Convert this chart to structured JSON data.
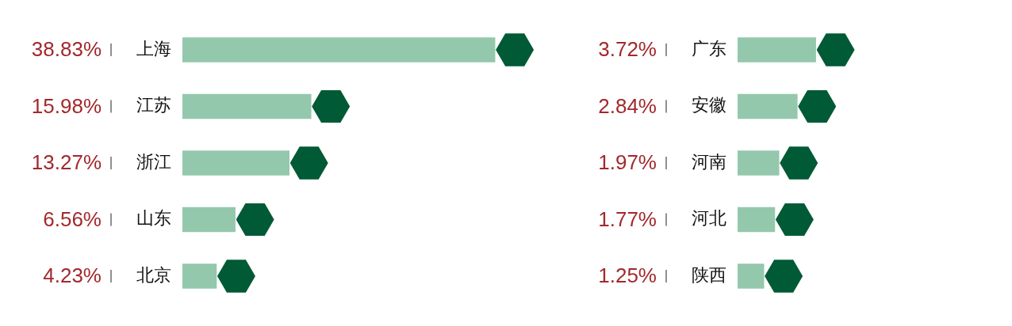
{
  "chart_data": [
    {
      "type": "bar",
      "orientation": "horizontal",
      "categories": [
        "上海",
        "江苏",
        "浙江",
        "山东",
        "北京"
      ],
      "values": [
        38.83,
        15.98,
        13.27,
        6.56,
        4.23
      ],
      "value_labels": [
        "38.83%",
        "15.98%",
        "13.27%",
        "6.56%",
        "4.23%"
      ],
      "color": "#93c8ac",
      "tick_labels": "y",
      "grid": false,
      "legend": false
    },
    {
      "type": "bar",
      "orientation": "horizontal",
      "categories": [
        "广东",
        "安徽",
        "河南",
        "河北",
        "陕西"
      ],
      "values": [
        3.72,
        2.84,
        1.97,
        1.77,
        1.25
      ],
      "value_labels": [
        "3.72%",
        "2.84%",
        "1.97%",
        "1.77%",
        "1.25%"
      ],
      "color": "#93c8ac",
      "tick_labels": "y",
      "grid": false,
      "legend": false
    }
  ]
}
